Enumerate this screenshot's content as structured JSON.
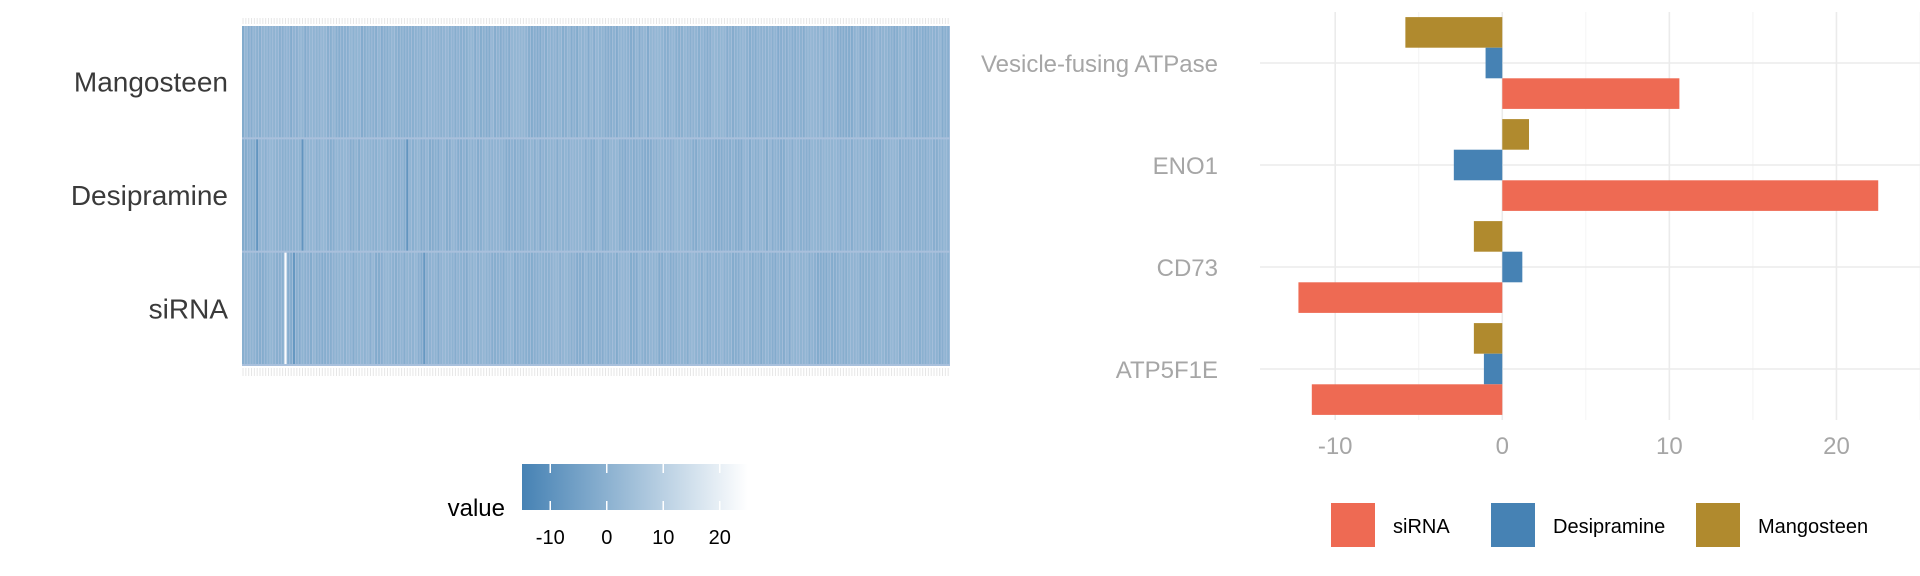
{
  "chart_data": [
    {
      "type": "heatmap",
      "rows": [
        "Mangosteen",
        "Desipramine",
        "siRNA"
      ],
      "columns_count": 250,
      "value_summary": {
        "Mangosteen": "near-uniform light blue across all columns",
        "Desipramine": "mostly light blue with a few darker columns",
        "siRNA": "light blue with one very light (high-value) column near the left"
      },
      "legend": {
        "title": "value",
        "ticks": [
          -10,
          0,
          10,
          20
        ],
        "range": [
          -15,
          25
        ]
      },
      "colors": {
        "low": "#4682B4",
        "high": "#FFFFFF"
      }
    },
    {
      "type": "bar",
      "orientation": "horizontal",
      "categories": [
        "Vesicle-fusing ATPase",
        "ENO1",
        "CD73",
        "ATP5F1E"
      ],
      "series": [
        {
          "name": "Mangosteen",
          "color": "#B08A2E",
          "values": [
            -5.8,
            1.6,
            -1.7,
            -1.7
          ]
        },
        {
          "name": "Desipramine",
          "color": "#4682B4",
          "values": [
            -1.0,
            -2.9,
            1.2,
            -1.1
          ]
        },
        {
          "name": "siRNA",
          "color": "#EE6A53",
          "values": [
            10.6,
            22.5,
            -12.2,
            -11.4
          ]
        }
      ],
      "x_ticks": [
        -10,
        0,
        10,
        20
      ],
      "xlim": [
        -14.5,
        25
      ],
      "legend": [
        "siRNA",
        "Desipramine",
        "Mangosteen"
      ],
      "legend_position": "bottom"
    }
  ]
}
